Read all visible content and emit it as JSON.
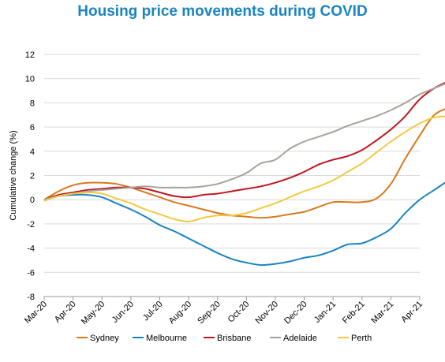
{
  "chart_data": {
    "type": "line",
    "title": "Housing price movements during COVID",
    "xlabel": "",
    "ylabel": "Cumulative change (%)",
    "ylim": [
      -8,
      12
    ],
    "yticks": [
      12,
      10,
      8,
      6,
      4,
      2,
      0,
      -2,
      -4,
      -6,
      -8
    ],
    "categories": [
      "Mar-20",
      "Apr-20",
      "May-20",
      "Jun-20",
      "Jul-20",
      "Aug-20",
      "Sep-20",
      "Oct-20",
      "Nov-20",
      "Dec-20",
      "Jan-21",
      "Feb-21",
      "Mar-21",
      "Apr-21"
    ],
    "grid": true,
    "legend_position": "bottom",
    "series": [
      {
        "name": "Sydney",
        "color": "#d9781c",
        "x": [
          0,
          0.5,
          1,
          1.5,
          2,
          2.5,
          3,
          3.5,
          4,
          4.5,
          5,
          5.5,
          6,
          6.5,
          7,
          7.5,
          8,
          8.5,
          9,
          9.5,
          10,
          10.5,
          11,
          11.5,
          12,
          12.5,
          13,
          13.5,
          14
        ],
        "values": [
          0,
          0.7,
          1.2,
          1.4,
          1.4,
          1.3,
          1,
          0.6,
          0.2,
          -0.2,
          -0.5,
          -0.8,
          -1.1,
          -1.3,
          -1.4,
          -1.5,
          -1.4,
          -1.2,
          -1,
          -0.6,
          -0.2,
          -0.2,
          -0.2,
          0.1,
          1.3,
          3.4,
          5.3,
          7,
          7.6
        ]
      },
      {
        "name": "Melbourne",
        "color": "#1a84c1",
        "x": [
          0,
          0.5,
          1,
          1.5,
          2,
          2.5,
          3,
          3.5,
          4,
          4.5,
          5,
          5.5,
          6,
          6.5,
          7,
          7.5,
          8,
          8.5,
          9,
          9.5,
          10,
          10.5,
          11,
          11.5,
          12,
          12.5,
          13,
          13.5,
          14
        ],
        "values": [
          0,
          0.3,
          0.4,
          0.4,
          0.2,
          -0.3,
          -0.8,
          -1.4,
          -2.1,
          -2.6,
          -3.2,
          -3.8,
          -4.4,
          -4.9,
          -5.2,
          -5.4,
          -5.3,
          -5.1,
          -4.8,
          -4.6,
          -4.2,
          -3.7,
          -3.6,
          -3.1,
          -2.4,
          -1.1,
          0,
          0.8,
          1.6
        ]
      },
      {
        "name": "Brisbane",
        "color": "#c0161f",
        "x": [
          0,
          0.5,
          1,
          1.5,
          2,
          2.5,
          3,
          3.5,
          4,
          4.5,
          5,
          5.5,
          6,
          6.5,
          7,
          7.5,
          8,
          8.5,
          9,
          9.5,
          10,
          10.5,
          11,
          11.5,
          12,
          12.5,
          13,
          13.5,
          14
        ],
        "values": [
          0,
          0.4,
          0.6,
          0.8,
          0.9,
          1,
          1,
          0.9,
          0.6,
          0.3,
          0.2,
          0.4,
          0.5,
          0.7,
          0.9,
          1.1,
          1.4,
          1.8,
          2.3,
          2.9,
          3.3,
          3.6,
          4.1,
          4.9,
          5.8,
          6.9,
          8.3,
          9.2,
          9.8
        ]
      },
      {
        "name": "Adelaide",
        "color": "#a8a29b",
        "x": [
          0,
          0.5,
          1,
          1.5,
          2,
          2.5,
          3,
          3.5,
          4,
          4.5,
          5,
          5.5,
          6,
          6.5,
          7,
          7.5,
          8,
          8.5,
          9,
          9.5,
          10,
          10.5,
          11,
          11.5,
          12,
          12.5,
          13,
          13.5,
          14
        ],
        "values": [
          0,
          0.3,
          0.5,
          0.7,
          0.8,
          0.9,
          1,
          1.1,
          1,
          1,
          1,
          1.1,
          1.3,
          1.7,
          2.2,
          3,
          3.3,
          4.2,
          4.8,
          5.2,
          5.6,
          6.1,
          6.5,
          6.9,
          7.4,
          8,
          8.7,
          9.2,
          9.7
        ]
      },
      {
        "name": "Perth",
        "color": "#f2c940",
        "x": [
          0,
          0.5,
          1,
          1.5,
          2,
          2.5,
          3,
          3.5,
          4,
          4.5,
          5,
          5.5,
          6,
          6.5,
          7,
          7.5,
          8,
          8.5,
          9,
          9.5,
          10,
          10.5,
          11,
          11.5,
          12,
          12.5,
          13,
          13.5,
          14
        ],
        "values": [
          -0.1,
          0.3,
          0.5,
          0.6,
          0.5,
          0.1,
          -0.3,
          -0.8,
          -1.2,
          -1.6,
          -1.8,
          -1.5,
          -1.3,
          -1.3,
          -1.1,
          -0.7,
          -0.3,
          0.2,
          0.7,
          1.1,
          1.6,
          2.3,
          3,
          3.9,
          4.8,
          5.6,
          6.3,
          6.8,
          6.9
        ]
      }
    ]
  },
  "colors": {
    "title": "#1a84c1",
    "grid": "#d9d9d9",
    "axis": "#999999"
  }
}
